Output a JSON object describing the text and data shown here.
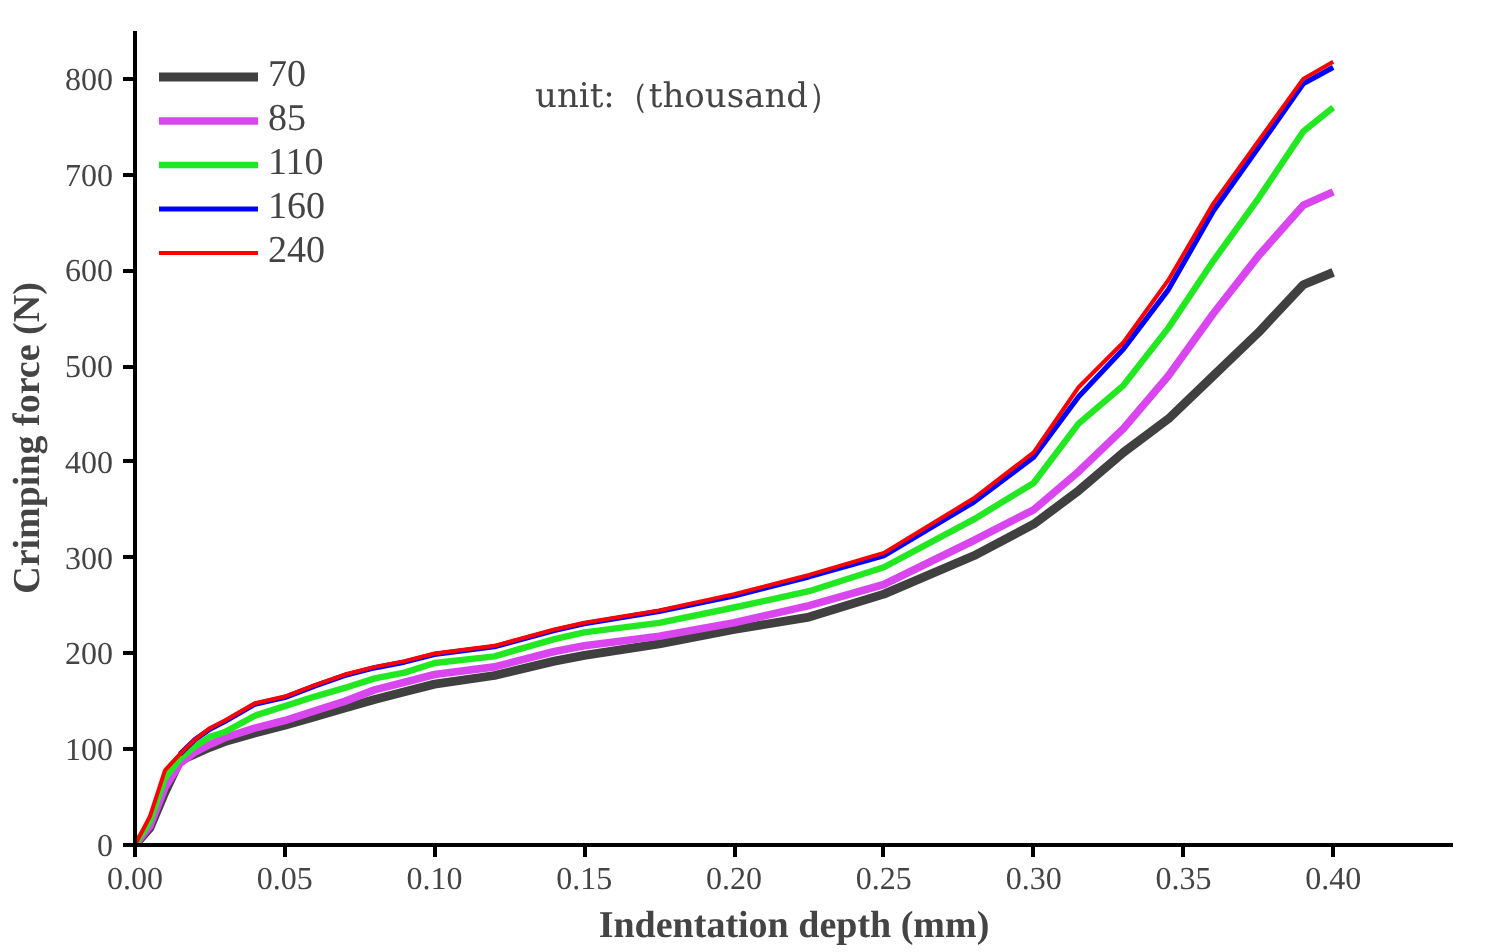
{
  "chart_data": {
    "type": "line",
    "xlabel": "Indentation depth (mm)",
    "ylabel": "Crimping force (N)",
    "legend_title": "unit:（thousand）",
    "x": [
      0,
      0.005,
      0.01,
      0.015,
      0.02,
      0.025,
      0.03,
      0.04,
      0.05,
      0.06,
      0.07,
      0.08,
      0.09,
      0.1,
      0.12,
      0.14,
      0.15,
      0.175,
      0.2,
      0.225,
      0.25,
      0.28,
      0.3,
      0.315,
      0.33,
      0.345,
      0.36,
      0.375,
      0.39,
      0.4
    ],
    "series": [
      {
        "name": "70",
        "color": "#404040",
        "values": [
          0,
          18,
          55,
          88,
          95,
          102,
          108,
          117,
          125,
          134,
          143,
          152,
          160,
          168,
          177,
          192,
          198,
          210,
          225,
          238,
          262,
          302,
          335,
          370,
          410,
          445,
          490,
          535,
          585,
          598
        ]
      },
      {
        "name": "85",
        "color": "#d946ef",
        "values": [
          0,
          20,
          60,
          85,
          97,
          105,
          112,
          122,
          130,
          140,
          150,
          162,
          170,
          178,
          186,
          202,
          208,
          218,
          232,
          250,
          272,
          318,
          350,
          390,
          435,
          490,
          555,
          615,
          668,
          682
        ]
      },
      {
        "name": "110",
        "color": "#22e822",
        "values": [
          0,
          25,
          70,
          90,
          103,
          113,
          118,
          135,
          145,
          155,
          164,
          174,
          180,
          190,
          197,
          215,
          222,
          232,
          248,
          265,
          290,
          340,
          378,
          440,
          480,
          540,
          610,
          675,
          745,
          770
        ]
      },
      {
        "name": "160",
        "color": "#0000ff",
        "values": [
          null,
          null,
          null,
          95,
          110,
          121,
          129,
          147,
          154,
          166,
          177,
          185,
          191,
          199,
          207,
          224,
          231,
          244,
          260,
          280,
          302,
          358,
          405,
          468,
          518,
          580,
          662,
          728,
          795,
          812
        ]
      },
      {
        "name": "240",
        "color": "#ff0000",
        "values": [
          0,
          30,
          78,
          95,
          110,
          122,
          130,
          148,
          155,
          167,
          178,
          186,
          192,
          200,
          208,
          225,
          232,
          245,
          262,
          282,
          305,
          362,
          410,
          478,
          525,
          590,
          670,
          735,
          800,
          818
        ]
      }
    ],
    "xlim": [
      0,
      0.44
    ],
    "ylim": [
      0,
      850
    ],
    "xticks": [
      {
        "value": 0,
        "label": "0.00"
      },
      0.05,
      {
        "value": 0.1,
        "label": "0.10"
      },
      0.15,
      {
        "value": 0.2,
        "label": "0.20"
      },
      0.25,
      {
        "value": 0.3,
        "label": "0.30"
      },
      0.35,
      {
        "value": 0.4,
        "label": "0.40"
      }
    ],
    "yticks": [
      0,
      100,
      200,
      300,
      400,
      500,
      600,
      700,
      800
    ],
    "grid": false,
    "legend": "top left",
    "line_style": "solid",
    "marker": "none"
  }
}
